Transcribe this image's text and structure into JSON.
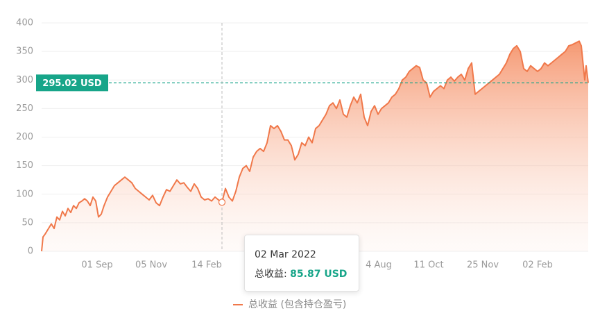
{
  "chart_data": {
    "type": "area",
    "x": [
      0,
      2,
      5,
      10,
      14,
      18,
      22,
      26,
      30,
      34,
      38,
      42,
      46,
      50,
      54,
      58,
      62,
      66,
      70,
      74,
      78,
      82,
      86,
      90,
      95,
      100,
      105,
      110,
      115,
      120,
      125,
      130,
      135,
      140,
      145,
      150,
      155,
      160,
      165,
      170,
      175,
      180,
      185,
      190,
      195,
      200,
      205,
      210,
      215,
      220,
      225,
      230,
      235,
      240,
      245,
      250,
      255,
      260,
      265,
      270,
      275,
      280,
      285,
      290,
      295,
      300,
      305,
      310,
      315,
      320,
      325,
      330,
      335,
      340,
      345,
      350,
      355,
      360,
      365,
      370,
      375,
      380,
      385,
      390,
      395,
      400,
      405,
      410,
      415,
      420,
      425,
      430,
      435,
      440,
      445,
      450,
      455,
      460,
      465,
      470,
      475,
      480,
      485,
      490,
      495,
      500,
      505,
      510,
      515,
      520,
      525,
      530,
      535,
      540,
      545,
      550,
      555,
      560,
      565,
      570,
      575,
      580,
      585,
      590,
      595,
      600,
      605,
      610,
      615,
      620,
      625,
      630,
      635,
      640,
      645,
      650,
      655,
      660,
      665,
      670,
      675,
      680,
      685,
      690,
      695,
      700,
      705,
      710,
      715,
      720,
      725,
      730,
      735,
      740,
      745,
      750,
      755,
      760,
      765,
      770,
      775,
      778,
      783,
      785,
      788
    ],
    "series": [
      {
        "name": "总收益 (包含持仓盈亏)",
        "color": "#f0784a",
        "values": [
          0,
          25,
          30,
          40,
          48,
          40,
          60,
          55,
          70,
          62,
          75,
          68,
          80,
          75,
          85,
          88,
          92,
          88,
          80,
          95,
          88,
          60,
          65,
          80,
          95,
          105,
          115,
          120,
          125,
          130,
          125,
          120,
          110,
          105,
          100,
          95,
          90,
          98,
          85,
          80,
          95,
          108,
          105,
          115,
          125,
          118,
          120,
          112,
          105,
          118,
          110,
          95,
          90,
          92,
          88,
          95,
          90,
          85.87,
          110,
          95,
          88,
          105,
          130,
          145,
          150,
          140,
          165,
          175,
          180,
          175,
          190,
          220,
          215,
          220,
          210,
          195,
          195,
          185,
          160,
          170,
          190,
          185,
          200,
          190,
          215,
          220,
          230,
          240,
          255,
          260,
          250,
          265,
          240,
          235,
          255,
          270,
          260,
          275,
          235,
          220,
          245,
          255,
          240,
          250,
          255,
          260,
          270,
          275,
          285,
          300,
          305,
          315,
          320,
          325,
          322,
          300,
          295,
          270,
          280,
          285,
          290,
          285,
          300,
          305,
          298,
          305,
          310,
          300,
          320,
          330,
          275,
          280,
          285,
          290,
          295,
          300,
          305,
          310,
          320,
          330,
          345,
          355,
          360,
          350,
          320,
          315,
          325,
          320,
          315,
          320,
          330,
          325,
          330,
          335,
          340,
          345,
          350,
          360,
          362,
          365,
          368,
          360,
          300,
          325,
          295
        ]
      }
    ],
    "xlim": [
      0,
      788
    ],
    "xticks": [
      {
        "value": 80,
        "label": "01 Sep"
      },
      {
        "value": 158,
        "label": "05 Nov"
      },
      {
        "value": 238,
        "label": "14 Feb"
      },
      {
        "value": 486,
        "label": "4 Aug"
      },
      {
        "value": 558,
        "label": "11 Oct"
      },
      {
        "value": 636,
        "label": "25 Nov"
      },
      {
        "value": 715,
        "label": "02 Feb"
      }
    ],
    "ylim": [
      0,
      400
    ],
    "yticks": [
      0,
      50,
      100,
      150,
      200,
      250,
      300,
      350,
      400
    ],
    "grid": true,
    "reference": {
      "value": 295.02,
      "value_label": "295.02 USD",
      "color": "#17a589"
    },
    "hover": {
      "x": 260,
      "date": "02 Mar 2022",
      "label": "总收益:",
      "value": 85.87,
      "value_label": "85.87 USD"
    }
  }
}
